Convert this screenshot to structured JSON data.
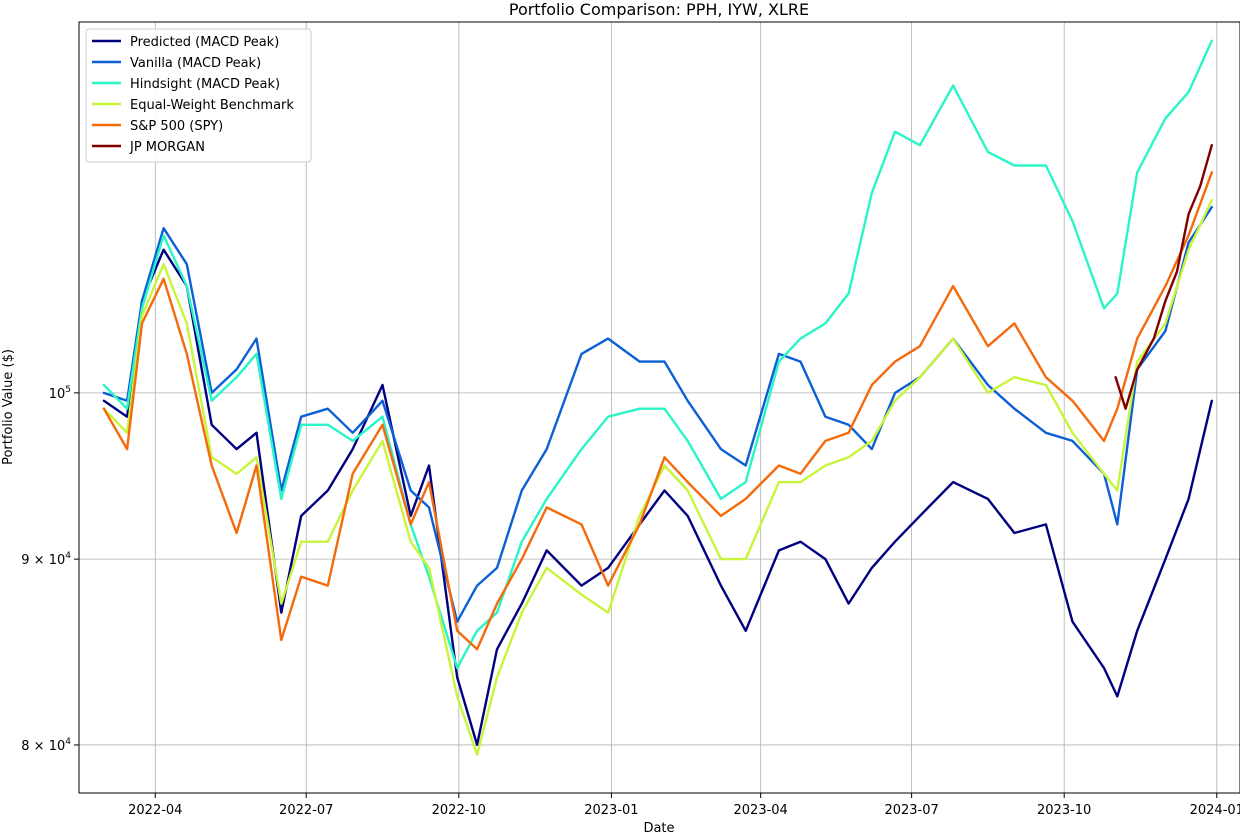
{
  "chart_data": {
    "type": "line",
    "title": "Portfolio Comparison: PPH, IYW, XLRE",
    "xlabel": "Date",
    "ylabel": "Portfolio Value ($)",
    "yscale": "log",
    "ylim": [
      77600,
      126500
    ],
    "xlim": [
      "2022-02-14",
      "2024-01-15"
    ],
    "grid": true,
    "legend_position": "top-left",
    "x_ticks": [
      "2022-04",
      "2022-07",
      "2022-10",
      "2023-01",
      "2023-04",
      "2023-07",
      "2023-10",
      "2024-01"
    ],
    "y_ticks": [
      {
        "value": 80000,
        "label_base": "8 × 10",
        "label_exp": "4"
      },
      {
        "value": 90000,
        "label_base": "9 × 10",
        "label_exp": "4"
      },
      {
        "value": 100000,
        "label_base": "10",
        "label_exp": "5"
      }
    ],
    "series": [
      {
        "name": "Predicted (MACD Peak)",
        "color": "#000080",
        "points": [
          [
            "2022-03-01",
            99500
          ],
          [
            "2022-03-15",
            98500
          ],
          [
            "2022-03-24",
            106000
          ],
          [
            "2022-04-06",
            109500
          ],
          [
            "2022-04-20",
            107000
          ],
          [
            "2022-05-05",
            98000
          ],
          [
            "2022-05-20",
            96500
          ],
          [
            "2022-06-01",
            97500
          ],
          [
            "2022-06-16",
            87000
          ],
          [
            "2022-06-28",
            92500
          ],
          [
            "2022-07-14",
            94000
          ],
          [
            "2022-07-29",
            96500
          ],
          [
            "2022-08-16",
            100500
          ],
          [
            "2022-09-02",
            92500
          ],
          [
            "2022-09-13",
            95500
          ],
          [
            "2022-09-30",
            83500
          ],
          [
            "2022-10-12",
            80000
          ],
          [
            "2022-10-24",
            85000
          ],
          [
            "2022-11-08",
            87500
          ],
          [
            "2022-11-23",
            90500
          ],
          [
            "2022-12-14",
            88500
          ],
          [
            "2022-12-30",
            89500
          ],
          [
            "2023-01-18",
            92000
          ],
          [
            "2023-02-02",
            94000
          ],
          [
            "2023-02-16",
            92500
          ],
          [
            "2023-03-08",
            88500
          ],
          [
            "2023-03-23",
            86000
          ],
          [
            "2023-04-12",
            90500
          ],
          [
            "2023-04-25",
            91000
          ],
          [
            "2023-05-10",
            90000
          ],
          [
            "2023-05-24",
            87500
          ],
          [
            "2023-06-07",
            89500
          ],
          [
            "2023-06-21",
            91000
          ],
          [
            "2023-07-06",
            92500
          ],
          [
            "2023-07-26",
            94500
          ],
          [
            "2023-08-16",
            93500
          ],
          [
            "2023-09-01",
            91500
          ],
          [
            "2023-09-20",
            92000
          ],
          [
            "2023-10-06",
            86500
          ],
          [
            "2023-10-25",
            84000
          ],
          [
            "2023-11-02",
            82500
          ],
          [
            "2023-11-14",
            86000
          ],
          [
            "2023-12-01",
            90000
          ],
          [
            "2023-12-15",
            93500
          ],
          [
            "2023-12-29",
            99500
          ]
        ]
      },
      {
        "name": "Vanilla (MACD Peak)",
        "color": "#0c5fd6",
        "points": [
          [
            "2022-03-01",
            100000
          ],
          [
            "2022-03-15",
            99500
          ],
          [
            "2022-03-24",
            106000
          ],
          [
            "2022-04-06",
            111000
          ],
          [
            "2022-04-20",
            108500
          ],
          [
            "2022-05-05",
            100000
          ],
          [
            "2022-05-20",
            101500
          ],
          [
            "2022-06-01",
            103500
          ],
          [
            "2022-06-16",
            94000
          ],
          [
            "2022-06-28",
            98500
          ],
          [
            "2022-07-14",
            99000
          ],
          [
            "2022-07-29",
            97500
          ],
          [
            "2022-08-16",
            99500
          ],
          [
            "2022-09-02",
            94000
          ],
          [
            "2022-09-13",
            93000
          ],
          [
            "2022-09-30",
            86500
          ],
          [
            "2022-10-12",
            88500
          ],
          [
            "2022-10-24",
            89500
          ],
          [
            "2022-11-08",
            94000
          ],
          [
            "2022-11-23",
            96500
          ],
          [
            "2022-12-14",
            102500
          ],
          [
            "2022-12-30",
            103500
          ],
          [
            "2023-01-18",
            102000
          ],
          [
            "2023-02-02",
            102000
          ],
          [
            "2023-02-16",
            99500
          ],
          [
            "2023-03-08",
            96500
          ],
          [
            "2023-03-23",
            95500
          ],
          [
            "2023-04-12",
            102500
          ],
          [
            "2023-04-25",
            102000
          ],
          [
            "2023-05-10",
            98500
          ],
          [
            "2023-05-24",
            98000
          ],
          [
            "2023-06-07",
            96500
          ],
          [
            "2023-06-21",
            100000
          ],
          [
            "2023-07-06",
            101000
          ],
          [
            "2023-07-26",
            103500
          ],
          [
            "2023-08-16",
            100500
          ],
          [
            "2023-09-01",
            99000
          ],
          [
            "2023-09-20",
            97500
          ],
          [
            "2023-10-06",
            97000
          ],
          [
            "2023-10-25",
            95000
          ],
          [
            "2023-11-02",
            92000
          ],
          [
            "2023-11-14",
            101500
          ],
          [
            "2023-12-01",
            104000
          ],
          [
            "2023-12-15",
            110000
          ],
          [
            "2023-12-29",
            112500
          ]
        ]
      },
      {
        "name": "Hindsight (MACD Peak)",
        "color": "#29f5c7",
        "points": [
          [
            "2022-03-01",
            100500
          ],
          [
            "2022-03-15",
            99000
          ],
          [
            "2022-03-24",
            105500
          ],
          [
            "2022-04-06",
            110500
          ],
          [
            "2022-04-20",
            107000
          ],
          [
            "2022-05-05",
            99500
          ],
          [
            "2022-05-20",
            101000
          ],
          [
            "2022-06-01",
            102500
          ],
          [
            "2022-06-16",
            93500
          ],
          [
            "2022-06-28",
            98000
          ],
          [
            "2022-07-14",
            98000
          ],
          [
            "2022-07-29",
            97000
          ],
          [
            "2022-08-16",
            98500
          ],
          [
            "2022-09-02",
            92000
          ],
          [
            "2022-09-13",
            89000
          ],
          [
            "2022-09-30",
            84000
          ],
          [
            "2022-10-12",
            86000
          ],
          [
            "2022-10-24",
            87000
          ],
          [
            "2022-11-08",
            91000
          ],
          [
            "2022-11-23",
            93500
          ],
          [
            "2022-12-14",
            96500
          ],
          [
            "2022-12-30",
            98500
          ],
          [
            "2023-01-18",
            99000
          ],
          [
            "2023-02-02",
            99000
          ],
          [
            "2023-02-16",
            97000
          ],
          [
            "2023-03-08",
            93500
          ],
          [
            "2023-03-23",
            94500
          ],
          [
            "2023-04-12",
            102000
          ],
          [
            "2023-04-25",
            103500
          ],
          [
            "2023-05-10",
            104500
          ],
          [
            "2023-05-24",
            106500
          ],
          [
            "2023-06-07",
            113500
          ],
          [
            "2023-06-21",
            118000
          ],
          [
            "2023-07-06",
            117000
          ],
          [
            "2023-07-26",
            121500
          ],
          [
            "2023-08-16",
            116500
          ],
          [
            "2023-09-01",
            115500
          ],
          [
            "2023-09-20",
            115500
          ],
          [
            "2023-10-06",
            111500
          ],
          [
            "2023-10-25",
            105500
          ],
          [
            "2023-11-02",
            106500
          ],
          [
            "2023-11-14",
            115000
          ],
          [
            "2023-12-01",
            119000
          ],
          [
            "2023-12-15",
            121000
          ],
          [
            "2023-12-29",
            125000
          ]
        ]
      },
      {
        "name": "Equal-Weight Benchmark",
        "color": "#c8f53a",
        "points": [
          [
            "2022-03-01",
            99000
          ],
          [
            "2022-03-15",
            97500
          ],
          [
            "2022-03-24",
            105000
          ],
          [
            "2022-04-06",
            108500
          ],
          [
            "2022-04-20",
            104500
          ],
          [
            "2022-05-05",
            96000
          ],
          [
            "2022-05-20",
            95000
          ],
          [
            "2022-06-01",
            96000
          ],
          [
            "2022-06-16",
            87500
          ],
          [
            "2022-06-28",
            91000
          ],
          [
            "2022-07-14",
            91000
          ],
          [
            "2022-07-29",
            94000
          ],
          [
            "2022-08-16",
            97000
          ],
          [
            "2022-09-02",
            91000
          ],
          [
            "2022-09-13",
            89500
          ],
          [
            "2022-09-30",
            82500
          ],
          [
            "2022-10-12",
            79500
          ],
          [
            "2022-10-24",
            83500
          ],
          [
            "2022-11-08",
            87000
          ],
          [
            "2022-11-23",
            89500
          ],
          [
            "2022-12-14",
            88000
          ],
          [
            "2022-12-30",
            87000
          ],
          [
            "2023-01-18",
            92500
          ],
          [
            "2023-02-02",
            95500
          ],
          [
            "2023-02-16",
            94000
          ],
          [
            "2023-03-08",
            90000
          ],
          [
            "2023-03-23",
            90000
          ],
          [
            "2023-04-12",
            94500
          ],
          [
            "2023-04-25",
            94500
          ],
          [
            "2023-05-10",
            95500
          ],
          [
            "2023-05-24",
            96000
          ],
          [
            "2023-06-07",
            97000
          ],
          [
            "2023-06-21",
            99500
          ],
          [
            "2023-07-06",
            101000
          ],
          [
            "2023-07-26",
            103500
          ],
          [
            "2023-08-16",
            100000
          ],
          [
            "2023-09-01",
            101000
          ],
          [
            "2023-09-20",
            100500
          ],
          [
            "2023-10-06",
            97500
          ],
          [
            "2023-10-25",
            95000
          ],
          [
            "2023-11-02",
            94000
          ],
          [
            "2023-11-14",
            102000
          ],
          [
            "2023-12-01",
            104500
          ],
          [
            "2023-12-15",
            109500
          ],
          [
            "2023-12-29",
            113000
          ]
        ]
      },
      {
        "name": "S&P 500 (SPY)",
        "color": "#f56a0c",
        "points": [
          [
            "2022-03-01",
            99000
          ],
          [
            "2022-03-15",
            96500
          ],
          [
            "2022-03-24",
            104500
          ],
          [
            "2022-04-06",
            107500
          ],
          [
            "2022-04-20",
            102500
          ],
          [
            "2022-05-05",
            95500
          ],
          [
            "2022-05-20",
            91500
          ],
          [
            "2022-06-01",
            95500
          ],
          [
            "2022-06-16",
            85500
          ],
          [
            "2022-06-28",
            89000
          ],
          [
            "2022-07-14",
            88500
          ],
          [
            "2022-07-29",
            95000
          ],
          [
            "2022-08-16",
            98000
          ],
          [
            "2022-09-02",
            92000
          ],
          [
            "2022-09-13",
            94500
          ],
          [
            "2022-09-30",
            86000
          ],
          [
            "2022-10-12",
            85000
          ],
          [
            "2022-10-24",
            87500
          ],
          [
            "2022-11-08",
            90000
          ],
          [
            "2022-11-23",
            93000
          ],
          [
            "2022-12-14",
            92000
          ],
          [
            "2022-12-30",
            88500
          ],
          [
            "2023-01-18",
            92000
          ],
          [
            "2023-02-02",
            96000
          ],
          [
            "2023-02-16",
            94500
          ],
          [
            "2023-03-08",
            92500
          ],
          [
            "2023-03-23",
            93500
          ],
          [
            "2023-04-12",
            95500
          ],
          [
            "2023-04-25",
            95000
          ],
          [
            "2023-05-10",
            97000
          ],
          [
            "2023-05-24",
            97500
          ],
          [
            "2023-06-07",
            100500
          ],
          [
            "2023-06-21",
            102000
          ],
          [
            "2023-07-06",
            103000
          ],
          [
            "2023-07-26",
            107000
          ],
          [
            "2023-08-16",
            103000
          ],
          [
            "2023-09-01",
            104500
          ],
          [
            "2023-09-20",
            101000
          ],
          [
            "2023-10-06",
            99500
          ],
          [
            "2023-10-25",
            97000
          ],
          [
            "2023-11-02",
            99000
          ],
          [
            "2023-11-14",
            103500
          ],
          [
            "2023-12-01",
            107000
          ],
          [
            "2023-12-15",
            110500
          ],
          [
            "2023-12-29",
            115000
          ]
        ]
      },
      {
        "name": "JP MORGAN",
        "color": "#800000",
        "points": [
          [
            "2023-11-01",
            101000
          ],
          [
            "2023-11-07",
            99000
          ],
          [
            "2023-11-14",
            101500
          ],
          [
            "2023-11-24",
            103500
          ],
          [
            "2023-12-01",
            106000
          ],
          [
            "2023-12-08",
            108000
          ],
          [
            "2023-12-15",
            112000
          ],
          [
            "2023-12-22",
            114000
          ],
          [
            "2023-12-29",
            117000
          ]
        ]
      }
    ]
  }
}
